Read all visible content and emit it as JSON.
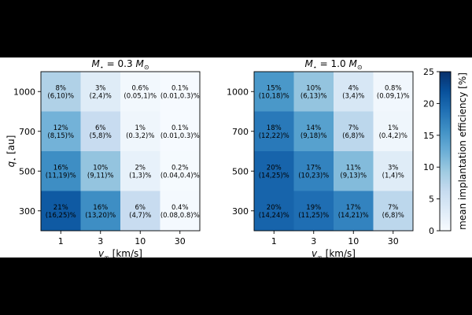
{
  "chart_data": [
    {
      "type": "heatmap",
      "title_main": "M",
      "title_sub": "⋆",
      "title_eq": " = 0.3 ",
      "title_unit": "M",
      "title_unit_sub": "⊙",
      "xlabel_main": "v",
      "xlabel_sub": "∞",
      "xlabel_rest": " [km/s]",
      "ylabel_main": "q",
      "ylabel_sub": "⋆",
      "ylabel_rest": " [au]",
      "x": [
        "1",
        "3",
        "10",
        "30"
      ],
      "y": [
        "1000",
        "700",
        "500",
        "300"
      ],
      "values": [
        [
          8,
          3,
          0.6,
          0.1
        ],
        [
          12,
          6,
          1,
          0.1
        ],
        [
          16,
          10,
          2,
          0.2
        ],
        [
          21,
          16,
          6,
          0.4
        ]
      ],
      "labels": [
        [
          [
            "8%",
            "(6,10)%"
          ],
          [
            "3%",
            "(2,4)%"
          ],
          [
            "0.6%",
            "(0.05,1)%"
          ],
          [
            "0.1%",
            "(0.01,0.3)%"
          ]
        ],
        [
          [
            "12%",
            "(8,15)%"
          ],
          [
            "6%",
            "(5,8)%"
          ],
          [
            "1%",
            "(0.3,2)%"
          ],
          [
            "0.1%",
            "(0.01,0.3)%"
          ]
        ],
        [
          [
            "16%",
            "(11,19)%"
          ],
          [
            "10%",
            "(9,11)%"
          ],
          [
            "2%",
            "(1,3)%"
          ],
          [
            "0.2%",
            "(0.04,0.4)%"
          ]
        ],
        [
          [
            "21%",
            "(16,25)%"
          ],
          [
            "16%",
            "(13,20)%"
          ],
          [
            "6%",
            "(4,7)%"
          ],
          [
            "0.4%",
            "(0.08,0.8)%"
          ]
        ]
      ],
      "vmin": 0,
      "vmax": 25,
      "colormap": "Blues"
    },
    {
      "type": "heatmap",
      "title_main": "M",
      "title_sub": "⋆",
      "title_eq": " = 1.0 ",
      "title_unit": "M",
      "title_unit_sub": "⊙",
      "xlabel_main": "v",
      "xlabel_sub": "∞",
      "xlabel_rest": " [km/s]",
      "x": [
        "1",
        "3",
        "10",
        "30"
      ],
      "y": [
        "1000",
        "700",
        "500",
        "300"
      ],
      "values": [
        [
          15,
          10,
          4,
          0.8
        ],
        [
          18,
          14,
          7,
          1
        ],
        [
          20,
          17,
          11,
          3
        ],
        [
          20,
          19,
          17,
          7
        ]
      ],
      "labels": [
        [
          [
            "15%",
            "(10,18)%"
          ],
          [
            "10%",
            "(6,13)%"
          ],
          [
            "4%",
            "(3,4)%"
          ],
          [
            "0.8%",
            "(0.09,1)%"
          ]
        ],
        [
          [
            "18%",
            "(12,22)%"
          ],
          [
            "14%",
            "(9,18)%"
          ],
          [
            "7%",
            "(6,8)%"
          ],
          [
            "1%",
            "(0.4,2)%"
          ]
        ],
        [
          [
            "20%",
            "(14,25)%"
          ],
          [
            "17%",
            "(10,23)%"
          ],
          [
            "11%",
            "(9,13)%"
          ],
          [
            "3%",
            "(1,4)%"
          ]
        ],
        [
          [
            "20%",
            "(14,24)%"
          ],
          [
            "19%",
            "(11,25)%"
          ],
          [
            "17%",
            "(14,21)%"
          ],
          [
            "7%",
            "(6,8)%"
          ]
        ]
      ],
      "vmin": 0,
      "vmax": 25,
      "colormap": "Blues"
    }
  ],
  "colorbar": {
    "label": "mean implantation efficiency [%]",
    "ticks": [
      "0",
      "5",
      "10",
      "15",
      "20",
      "25"
    ],
    "tick_values": [
      0,
      5,
      10,
      15,
      20,
      25
    ],
    "min": 0,
    "max": 25
  },
  "colors": {
    "blues_low": "#f7fbff",
    "blues_high": "#08306b",
    "text": "#000000",
    "page_bg": "#ffffff",
    "letterbox": "#000000"
  }
}
